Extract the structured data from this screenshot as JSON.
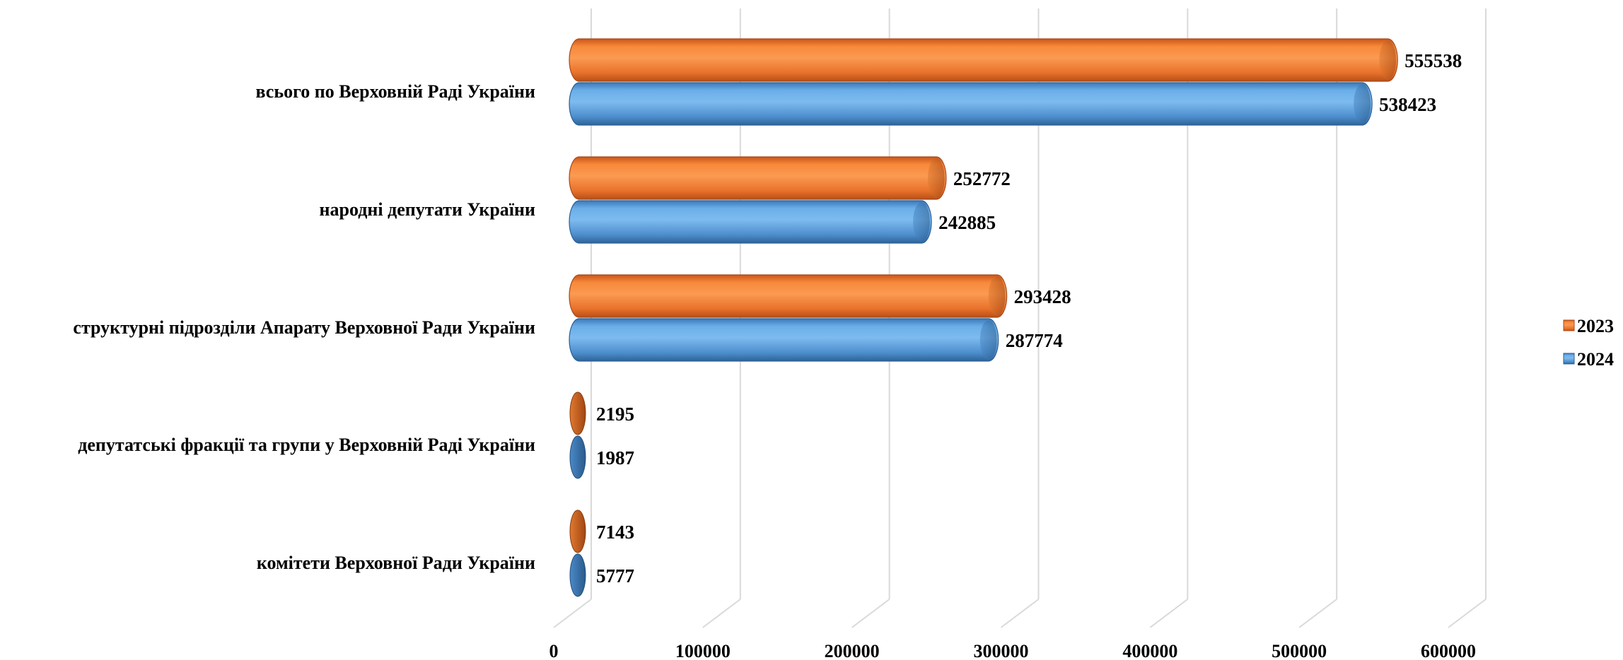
{
  "chart_data": {
    "type": "bar",
    "orientation": "horizontal",
    "style": "3d-cylinder",
    "categories": [
      "всього по Верховній Раді України",
      "народні депутати України",
      "структурні підрозділи Апарату Верховної Ради України",
      "депутатські фракції та групи у Верховній Раді України",
      "комітети Верховної Ради України"
    ],
    "series": [
      {
        "name": "2023",
        "color": "#F58A2E",
        "values": [
          555538,
          252772,
          293428,
          2195,
          7143
        ]
      },
      {
        "name": "2024",
        "color": "#5A9FE0",
        "values": [
          538423,
          242885,
          287774,
          1987,
          5777
        ]
      }
    ],
    "x_ticks": [
      "0",
      "100000",
      "200000",
      "300000",
      "400000",
      "500000",
      "600000"
    ],
    "xlim": [
      0,
      600000
    ],
    "grid": true,
    "legend_position": "right",
    "title": "",
    "xlabel": "",
    "ylabel": ""
  }
}
